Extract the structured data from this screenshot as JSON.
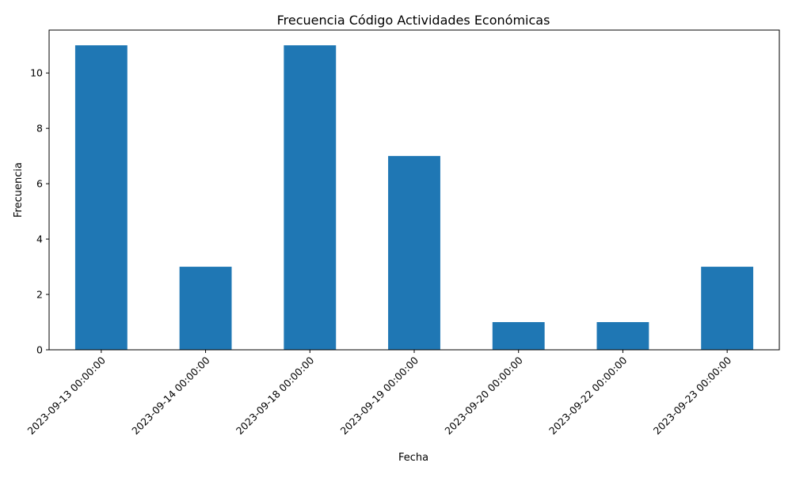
{
  "chart_data": {
    "type": "bar",
    "title": "Frecuencia Código Actividades Económicas",
    "xlabel": "Fecha",
    "ylabel": "Frecuencia",
    "categories": [
      "2023-09-13 00:00:00",
      "2023-09-14 00:00:00",
      "2023-09-18 00:00:00",
      "2023-09-19 00:00:00",
      "2023-09-20 00:00:00",
      "2023-09-22 00:00:00",
      "2023-09-23 00:00:00"
    ],
    "values": [
      11,
      3,
      11,
      7,
      1,
      1,
      3
    ],
    "ylim": [
      0,
      11.55
    ],
    "yticks": [
      0,
      2,
      4,
      6,
      8,
      10
    ],
    "grid": false,
    "legend": "none",
    "x_tick_rotation": "45 degrees",
    "bar_color": "#1f77b4"
  }
}
